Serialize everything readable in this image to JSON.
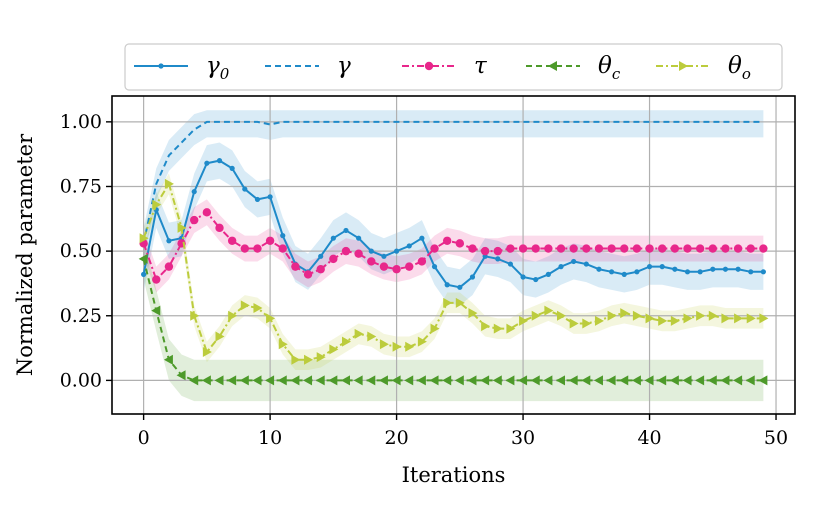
{
  "chart_data": {
    "type": "line",
    "title": "",
    "xlabel": "Iterations",
    "ylabel": "Normalized parameter",
    "xlim": [
      -2.5,
      51.5
    ],
    "ylim": [
      -0.13,
      1.1
    ],
    "xticks": [
      0,
      10,
      20,
      30,
      40,
      50
    ],
    "yticks": [
      0.0,
      0.25,
      0.5,
      0.75,
      1.0
    ],
    "xtick_labels": [
      "0",
      "10",
      "20",
      "30",
      "40",
      "50"
    ],
    "ytick_labels": [
      "0.00",
      "0.25",
      "0.50",
      "0.75",
      "1.00"
    ],
    "grid": true,
    "legend_position": "top-center",
    "series": [
      {
        "name": "γ0",
        "label_main": "γ",
        "label_sub": "0",
        "color": "#1f8ac9",
        "style": "solid",
        "marker": "dot",
        "band": 0.07,
        "x": [
          0,
          1,
          2,
          3,
          4,
          5,
          6,
          7,
          8,
          9,
          10,
          11,
          12,
          13,
          14,
          15,
          16,
          17,
          18,
          19,
          20,
          21,
          22,
          23,
          24,
          25,
          26,
          27,
          28,
          29,
          30,
          31,
          32,
          33,
          34,
          35,
          36,
          37,
          38,
          39,
          40,
          41,
          42,
          43,
          44,
          45,
          46,
          47,
          48,
          49
        ],
        "values": [
          0.41,
          0.66,
          0.54,
          0.55,
          0.73,
          0.84,
          0.85,
          0.82,
          0.74,
          0.7,
          0.71,
          0.56,
          0.45,
          0.42,
          0.48,
          0.55,
          0.58,
          0.55,
          0.5,
          0.48,
          0.5,
          0.52,
          0.55,
          0.44,
          0.37,
          0.36,
          0.4,
          0.48,
          0.47,
          0.45,
          0.4,
          0.39,
          0.41,
          0.44,
          0.46,
          0.45,
          0.43,
          0.42,
          0.41,
          0.42,
          0.44,
          0.44,
          0.43,
          0.42,
          0.42,
          0.43,
          0.43,
          0.43,
          0.42,
          0.42
        ]
      },
      {
        "name": "γ",
        "label_main": "γ",
        "label_sub": "",
        "color": "#1f8ac9",
        "style": "dashed",
        "marker": "none",
        "band": 0.06,
        "x": [
          0,
          1,
          2,
          3,
          4,
          5,
          6,
          7,
          8,
          9,
          10,
          11,
          12,
          13,
          14,
          15,
          16,
          17,
          18,
          19,
          20,
          21,
          22,
          23,
          24,
          25,
          26,
          27,
          28,
          29,
          30,
          31,
          32,
          33,
          34,
          35,
          36,
          37,
          38,
          39,
          40,
          41,
          42,
          43,
          44,
          45,
          46,
          47,
          48,
          49
        ],
        "values": [
          0.53,
          0.76,
          0.87,
          0.92,
          0.97,
          1.0,
          1.0,
          1.0,
          1.0,
          1.0,
          0.99,
          1.0,
          1.0,
          1.0,
          1.0,
          1.0,
          1.0,
          1.0,
          1.0,
          1.0,
          1.0,
          1.0,
          1.0,
          1.0,
          1.0,
          1.0,
          1.0,
          1.0,
          1.0,
          1.0,
          1.0,
          1.0,
          1.0,
          1.0,
          1.0,
          1.0,
          1.0,
          1.0,
          1.0,
          1.0,
          1.0,
          1.0,
          1.0,
          1.0,
          1.0,
          1.0,
          1.0,
          1.0,
          1.0,
          1.0
        ]
      },
      {
        "name": "τ",
        "label_main": "τ",
        "label_sub": "",
        "color": "#e8278b",
        "style": "dashdot",
        "marker": "circle",
        "band": 0.05,
        "x": [
          0,
          1,
          2,
          3,
          4,
          5,
          6,
          7,
          8,
          9,
          10,
          11,
          12,
          13,
          14,
          15,
          16,
          17,
          18,
          19,
          20,
          21,
          22,
          23,
          24,
          25,
          26,
          27,
          28,
          29,
          30,
          31,
          32,
          33,
          34,
          35,
          36,
          37,
          38,
          39,
          40,
          41,
          42,
          43,
          44,
          45,
          46,
          47,
          48,
          49
        ],
        "values": [
          0.53,
          0.39,
          0.44,
          0.53,
          0.62,
          0.65,
          0.59,
          0.54,
          0.51,
          0.51,
          0.54,
          0.51,
          0.44,
          0.41,
          0.43,
          0.47,
          0.5,
          0.49,
          0.46,
          0.44,
          0.43,
          0.44,
          0.46,
          0.51,
          0.54,
          0.53,
          0.51,
          0.5,
          0.5,
          0.51,
          0.51,
          0.51,
          0.51,
          0.51,
          0.51,
          0.51,
          0.51,
          0.51,
          0.51,
          0.51,
          0.51,
          0.51,
          0.51,
          0.51,
          0.51,
          0.51,
          0.51,
          0.51,
          0.51,
          0.51
        ]
      },
      {
        "name": "θc",
        "label_main": "θ",
        "label_sub": "c",
        "color": "#4d9a2a",
        "style": "dashed",
        "marker": "tri-left",
        "band": 0.08,
        "x": [
          0,
          1,
          2,
          3,
          4,
          5,
          6,
          7,
          8,
          9,
          10,
          11,
          12,
          13,
          14,
          15,
          16,
          17,
          18,
          19,
          20,
          21,
          22,
          23,
          24,
          25,
          26,
          27,
          28,
          29,
          30,
          31,
          32,
          33,
          34,
          35,
          36,
          37,
          38,
          39,
          40,
          41,
          42,
          43,
          44,
          45,
          46,
          47,
          48,
          49
        ],
        "values": [
          0.47,
          0.27,
          0.08,
          0.02,
          0.0,
          0.0,
          0.0,
          0.0,
          0.0,
          0.0,
          0.0,
          0.0,
          0.0,
          0.0,
          0.0,
          0.0,
          0.0,
          0.0,
          0.0,
          0.0,
          0.0,
          0.0,
          0.0,
          0.0,
          0.0,
          0.0,
          0.0,
          0.0,
          0.0,
          0.0,
          0.0,
          0.0,
          0.0,
          0.0,
          0.0,
          0.0,
          0.0,
          0.0,
          0.0,
          0.0,
          0.0,
          0.0,
          0.0,
          0.0,
          0.0,
          0.0,
          0.0,
          0.0,
          0.0,
          0.0
        ]
      },
      {
        "name": "θo",
        "label_main": "θ",
        "label_sub": "o",
        "color": "#bccc3c",
        "style": "dashdot",
        "marker": "tri-right",
        "band": 0.04,
        "x": [
          0,
          1,
          2,
          3,
          4,
          5,
          6,
          7,
          8,
          9,
          10,
          11,
          12,
          13,
          14,
          15,
          16,
          17,
          18,
          19,
          20,
          21,
          22,
          23,
          24,
          25,
          26,
          27,
          28,
          29,
          30,
          31,
          32,
          33,
          34,
          35,
          36,
          37,
          38,
          39,
          40,
          41,
          42,
          43,
          44,
          45,
          46,
          47,
          48,
          49
        ],
        "values": [
          0.55,
          0.68,
          0.76,
          0.59,
          0.25,
          0.11,
          0.17,
          0.25,
          0.29,
          0.28,
          0.24,
          0.14,
          0.08,
          0.08,
          0.09,
          0.12,
          0.15,
          0.18,
          0.17,
          0.14,
          0.13,
          0.13,
          0.15,
          0.2,
          0.3,
          0.3,
          0.26,
          0.21,
          0.2,
          0.2,
          0.23,
          0.25,
          0.27,
          0.25,
          0.22,
          0.22,
          0.23,
          0.25,
          0.26,
          0.25,
          0.24,
          0.23,
          0.23,
          0.24,
          0.25,
          0.25,
          0.24,
          0.24,
          0.24,
          0.24
        ]
      }
    ]
  }
}
